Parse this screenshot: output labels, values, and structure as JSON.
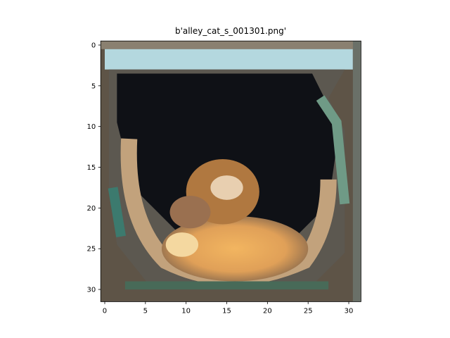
{
  "chart_data": {
    "type": "image",
    "title": "b'alley_cat_s_001301.png'",
    "xlim": [
      -0.5,
      31.5
    ],
    "ylim": [
      31.5,
      -0.5
    ],
    "xticks": [
      0,
      5,
      10,
      15,
      20,
      25,
      30
    ],
    "yticks": [
      0,
      5,
      10,
      15,
      20,
      25,
      30
    ]
  }
}
